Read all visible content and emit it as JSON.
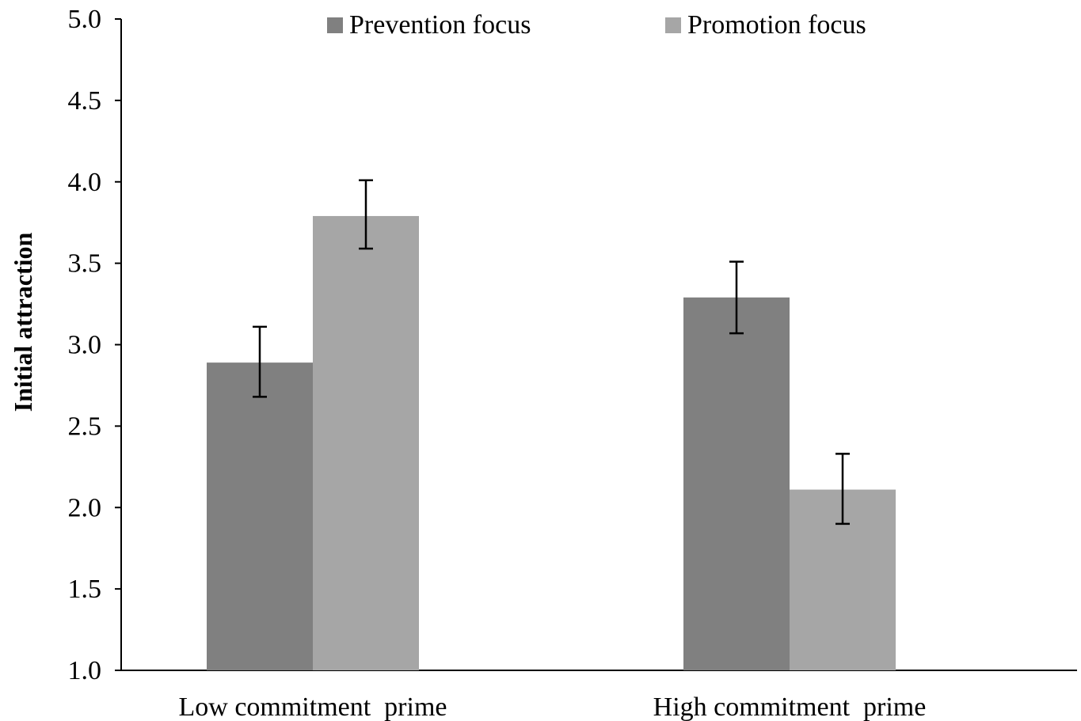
{
  "chart_data": {
    "type": "bar",
    "title": "",
    "xlabel": "",
    "ylabel": "Initial attraction",
    "ylim": [
      1.0,
      5.0
    ],
    "yticks": [
      "1.0",
      "1.5",
      "2.0",
      "2.5",
      "3.0",
      "3.5",
      "4.0",
      "4.5",
      "5.0"
    ],
    "categories": [
      "Low commitment  prime",
      "High commitment  prime"
    ],
    "series": [
      {
        "name": "Prevention focus",
        "color": "#808080",
        "values": [
          2.89,
          3.29
        ],
        "error": [
          [
            2.68,
            3.11
          ],
          [
            3.07,
            3.51
          ]
        ]
      },
      {
        "name": "Promotion focus",
        "color": "#a6a6a6",
        "values": [
          3.79,
          2.11
        ],
        "error": [
          [
            3.59,
            4.01
          ],
          [
            1.9,
            2.33
          ]
        ]
      }
    ],
    "grid": false,
    "legend_position": "top-center"
  }
}
